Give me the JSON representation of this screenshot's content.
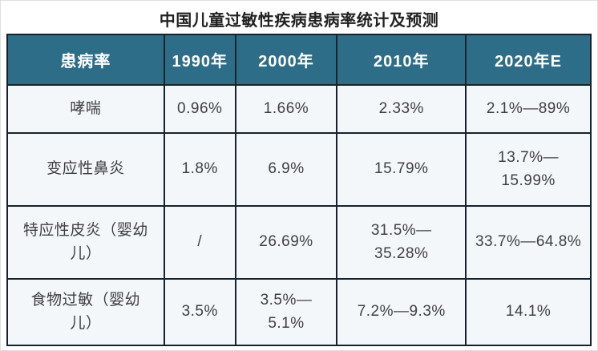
{
  "title": "中国儿童过敏性疾病患病率统计及预测",
  "colors": {
    "header_bg": "#2e6d88",
    "header_text": "#ffffff",
    "cell_bg": "#f3f7fa",
    "border": "#16222c",
    "body_text": "#3f3f3f"
  },
  "table": {
    "columns": [
      "患病率",
      "1990年",
      "2000年",
      "2010年",
      "2020年E"
    ],
    "rows": [
      {
        "label": "哮喘",
        "values": [
          "0.96%",
          "1.66%",
          "2.33%",
          "2.1%—89%"
        ]
      },
      {
        "label": "变应性鼻炎",
        "values": [
          "1.8%",
          "6.9%",
          "15.79%",
          "13.7%—\n15.99%"
        ]
      },
      {
        "label": "特应性皮炎（婴幼\n儿）",
        "values": [
          "/",
          "26.69%",
          "31.5%—\n35.28%",
          "33.7%—64.8%"
        ]
      },
      {
        "label": "食物过敏（婴幼\n儿）",
        "values": [
          "3.5%",
          "3.5%—\n5.1%",
          "7.2%—9.3%",
          "14.1%"
        ]
      }
    ]
  },
  "chart_data": {
    "type": "table",
    "title": "中国儿童过敏性疾病患病率统计及预测",
    "columns": [
      "患病率",
      "1990年",
      "2000年",
      "2010年",
      "2020年E"
    ],
    "rows": [
      [
        "哮喘",
        "0.96%",
        "1.66%",
        "2.33%",
        "2.1%—89%"
      ],
      [
        "变应性鼻炎",
        "1.8%",
        "6.9%",
        "15.79%",
        "13.7%—15.99%"
      ],
      [
        "特应性皮炎（婴幼儿）",
        "/",
        "26.69%",
        "31.5%—35.28%",
        "33.7%—64.8%"
      ],
      [
        "食物过敏（婴幼儿）",
        "3.5%",
        "3.5%—5.1%",
        "7.2%—9.3%",
        "14.1%"
      ]
    ]
  }
}
